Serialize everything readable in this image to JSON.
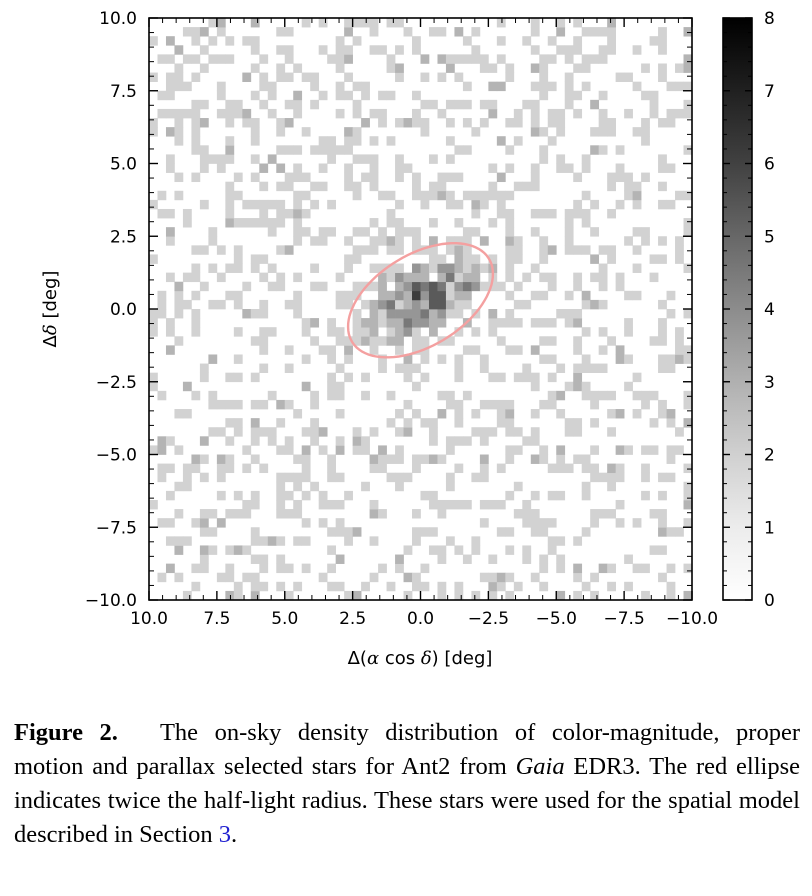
{
  "chart_data": {
    "type": "heatmap",
    "title": "",
    "xlabel_parts": [
      "Δ(",
      "α",
      " cos ",
      "δ",
      ") [deg]"
    ],
    "ylabel_parts": [
      "Δ",
      "δ",
      " [deg]"
    ],
    "xlim": [
      10.0,
      -10.0
    ],
    "ylim": [
      -10.0,
      10.0
    ],
    "x_ticks": [
      10.0,
      7.5,
      5.0,
      2.5,
      0.0,
      -2.5,
      -5.0,
      -7.5,
      -10.0
    ],
    "x_tick_labels": [
      "10.0",
      "7.5",
      "5.0",
      "2.5",
      "0.0",
      "−2.5",
      "−5.0",
      "−7.5",
      "−10.0"
    ],
    "y_ticks": [
      10.0,
      7.5,
      5.0,
      2.5,
      0.0,
      -2.5,
      -5.0,
      -7.5,
      -10.0
    ],
    "y_tick_labels": [
      "10.0",
      "7.5",
      "5.0",
      "2.5",
      "0.0",
      "−2.5",
      "−5.0",
      "−7.5",
      "−10.0"
    ],
    "colorbar": {
      "range": [
        0,
        8
      ],
      "ticks": [
        0,
        1,
        2,
        3,
        4,
        5,
        6,
        7,
        8
      ],
      "tick_labels": [
        "0",
        "1",
        "2",
        "3",
        "4",
        "5",
        "6",
        "7",
        "8"
      ],
      "colormap": "greys"
    },
    "ellipse": {
      "center": [
        0.0,
        0.3
      ],
      "semi_major": 2.9,
      "semi_minor": 1.6,
      "angle_deg": -28,
      "color": "#f4a0a0"
    },
    "bins": 64,
    "grid": false
  },
  "caption": {
    "label": "Figure 2.",
    "text_1": "The on-sky density distribution of color-magnitude, proper motion and parallax selected stars for Ant2 from ",
    "text_italic": "Gaia",
    "text_2": " EDR3. The red ellipse indicates twice the half-light radius. These stars were used for the spatial model described in Section ",
    "ref": "3",
    "text_3": "."
  }
}
